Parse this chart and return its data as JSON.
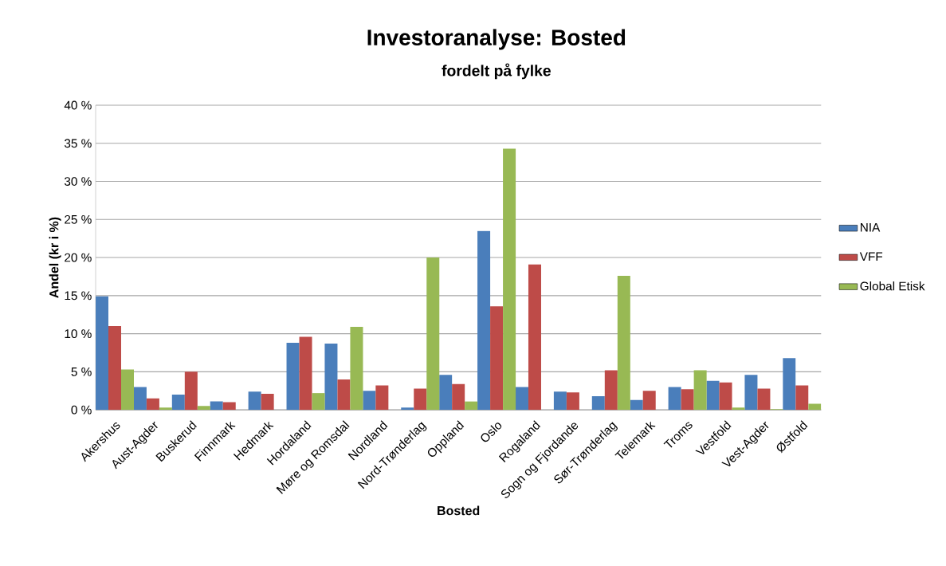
{
  "chart_data": {
    "type": "bar",
    "title": "Investoranalyse: Bosted",
    "subtitle": "fordelt på fylke",
    "xlabel": "Bosted",
    "ylabel": "Andel (kr i %)",
    "categories": [
      "Akershus",
      "Aust-Agder",
      "Buskerud",
      "Finnmark",
      "Hedmark",
      "Hordaland",
      "Møre og Romsdal",
      "Nordland",
      "Nord-Trønderlag",
      "Oppland",
      "Oslo",
      "Rogaland",
      "Sogn og Fjordande",
      "Sør-Trønderlag",
      "Telemark",
      "Troms",
      "Vestfold",
      "Vest-Agder",
      "Østfold"
    ],
    "series": [
      {
        "name": "NIA",
        "color": "#4a7ebb",
        "values": [
          14.9,
          3.0,
          2.0,
          1.1,
          2.4,
          8.8,
          8.7,
          2.5,
          0.3,
          4.6,
          23.5,
          3.0,
          2.4,
          1.8,
          1.3,
          3.0,
          3.8,
          4.6,
          6.8
        ]
      },
      {
        "name": "VFF",
        "color": "#be4b48",
        "values": [
          11.0,
          1.5,
          5.0,
          1.0,
          2.1,
          9.6,
          4.0,
          3.2,
          2.8,
          3.4,
          13.6,
          19.1,
          2.3,
          5.2,
          2.5,
          2.7,
          3.6,
          2.8,
          3.2
        ]
      },
      {
        "name": "Global Etisk",
        "color": "#98b954",
        "values": [
          5.3,
          0.3,
          0.5,
          0,
          0,
          2.2,
          10.9,
          0,
          20.0,
          1.1,
          34.3,
          0,
          0,
          17.6,
          0,
          5.2,
          0.3,
          0.1,
          0.8
        ]
      }
    ],
    "ylim": [
      0,
      40
    ],
    "yticks": [
      {
        "value": 0,
        "label": "0 %"
      },
      {
        "value": 5,
        "label": "5 %"
      },
      {
        "value": 10,
        "label": "10 %"
      },
      {
        "value": 15,
        "label": "15 %"
      },
      {
        "value": 20,
        "label": "20 %"
      },
      {
        "value": 25,
        "label": "25 %"
      },
      {
        "value": 30,
        "label": "30 %"
      },
      {
        "value": 35,
        "label": "35 %"
      },
      {
        "value": 40,
        "label": "40 %"
      }
    ],
    "grid": "y",
    "legend": "right"
  }
}
